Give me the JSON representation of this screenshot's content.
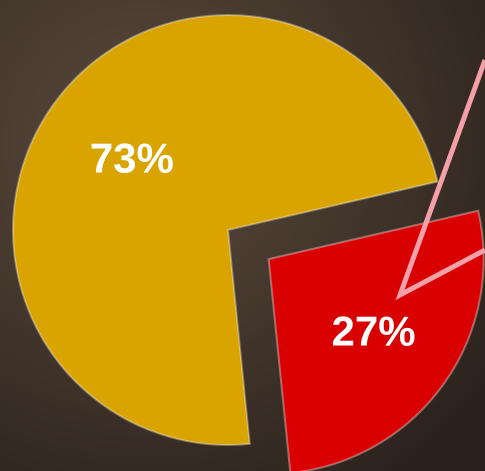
{
  "chart_data": {
    "type": "pie",
    "values": [
      73,
      27
    ],
    "value_labels": [
      "73%",
      "27%"
    ],
    "colors": [
      "#d9a300",
      "#d80000"
    ],
    "exploded": [
      false,
      true
    ]
  }
}
